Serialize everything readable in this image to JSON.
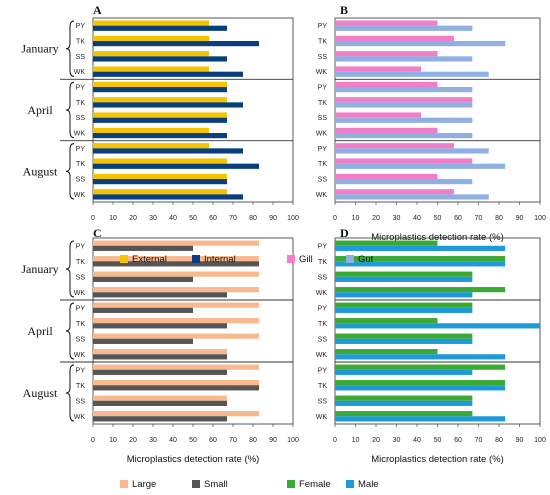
{
  "chart_data": [
    {
      "type": "bar",
      "panel": "A",
      "categories": [
        "PY",
        "TK",
        "SS",
        "WK",
        "PY",
        "TK",
        "SS",
        "WK",
        "PY",
        "TK",
        "SS",
        "WK"
      ],
      "groups": [
        "January",
        "April",
        "August"
      ],
      "series": [
        {
          "name": "External",
          "color": "#f5c400",
          "values": [
            58,
            58,
            58,
            58,
            67,
            67,
            67,
            58,
            58,
            67,
            67,
            67
          ]
        },
        {
          "name": "Internal",
          "color": "#0b3f7c",
          "values": [
            67,
            83,
            67,
            75,
            67,
            75,
            67,
            67,
            75,
            83,
            67,
            75
          ]
        }
      ],
      "xlabel": "",
      "xlim": [
        0,
        100
      ],
      "xticks": [
        0,
        10,
        20,
        30,
        40,
        50,
        60,
        70,
        80,
        90,
        100
      ]
    },
    {
      "type": "bar",
      "panel": "B",
      "categories": [
        "PY",
        "TK",
        "SS",
        "WK",
        "PY",
        "TK",
        "SS",
        "WK",
        "PY",
        "TK",
        "SS",
        "WK"
      ],
      "groups": [
        "January",
        "April",
        "August"
      ],
      "series": [
        {
          "name": "Gill",
          "color": "#f07ec8",
          "values": [
            50,
            58,
            50,
            42,
            50,
            67,
            42,
            50,
            58,
            67,
            50,
            58
          ]
        },
        {
          "name": "Gut",
          "color": "#8fb0e0",
          "values": [
            67,
            83,
            67,
            75,
            67,
            67,
            67,
            67,
            75,
            83,
            67,
            75
          ]
        }
      ],
      "xlabel": "Microplastics detection rate (%)",
      "xlim": [
        0,
        100
      ],
      "xticks": [
        0,
        10,
        20,
        30,
        40,
        50,
        60,
        70,
        80,
        90,
        100
      ]
    },
    {
      "type": "bar",
      "panel": "C",
      "categories": [
        "PY",
        "TK",
        "SS",
        "WK",
        "PY",
        "TK",
        "SS",
        "WK",
        "PY",
        "TK",
        "SS",
        "WK"
      ],
      "groups": [
        "January",
        "April",
        "August"
      ],
      "series": [
        {
          "name": "Large",
          "color": "#f8b98f",
          "values": [
            83,
            83,
            83,
            83,
            83,
            83,
            83,
            67,
            83,
            83,
            67,
            83
          ]
        },
        {
          "name": "Small",
          "color": "#555555",
          "values": [
            50,
            83,
            50,
            67,
            50,
            67,
            50,
            67,
            67,
            83,
            67,
            67
          ]
        }
      ],
      "xlabel": "Microplastics detection rate (%)",
      "xlim": [
        0,
        100
      ],
      "xticks": [
        0,
        10,
        20,
        30,
        40,
        50,
        60,
        70,
        80,
        90,
        100
      ]
    },
    {
      "type": "bar",
      "panel": "D",
      "categories": [
        "PY",
        "TK",
        "SS",
        "WK",
        "PY",
        "TK",
        "SS",
        "WK",
        "PY",
        "TK",
        "SS",
        "WK"
      ],
      "groups": [
        "January",
        "April",
        "August"
      ],
      "series": [
        {
          "name": "Female",
          "color": "#3aaa35",
          "values": [
            50,
            83,
            67,
            83,
            67,
            50,
            67,
            50,
            83,
            83,
            67,
            67
          ]
        },
        {
          "name": "Male",
          "color": "#1e9ad6",
          "values": [
            83,
            83,
            67,
            67,
            67,
            100,
            67,
            83,
            67,
            83,
            67,
            83
          ]
        }
      ],
      "xlabel": "Microplastics detection rate (%)",
      "xlim": [
        0,
        100
      ],
      "xticks": [
        0,
        10,
        20,
        30,
        40,
        50,
        60,
        70,
        80,
        90,
        100
      ]
    }
  ],
  "month_labels": [
    "January",
    "April",
    "August"
  ],
  "legend_top": [
    {
      "name": "External",
      "color": "#f5c400"
    },
    {
      "name": "Internal",
      "color": "#0b3f7c"
    },
    {
      "name": "Gill",
      "color": "#f07ec8"
    },
    {
      "name": "Gut",
      "color": "#8fb0e0"
    }
  ],
  "legend_bottom": [
    {
      "name": "Large",
      "color": "#f8b98f"
    },
    {
      "name": "Small",
      "color": "#555555"
    },
    {
      "name": "Female",
      "color": "#3aaa35"
    },
    {
      "name": "Male",
      "color": "#1e9ad6"
    }
  ]
}
